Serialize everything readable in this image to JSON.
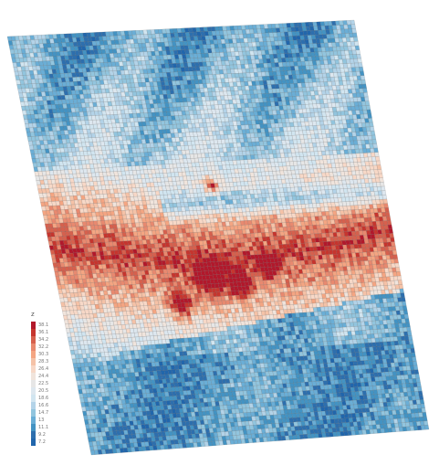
{
  "chart_data": {
    "type": "heatmap",
    "title": "",
    "xlabel": "",
    "ylabel": "",
    "grid": true,
    "rows": 96,
    "cols": 92,
    "description_of_field": "spatial heatmap; high values (red) concentrated in central band, low values (blue) at top and bottom",
    "legend": {
      "title": "z",
      "position": "bottom-left",
      "entries": [
        {
          "label": "38.1",
          "color": "#b2182b"
        },
        {
          "label": "36.1",
          "color": "#c6352e"
        },
        {
          "label": "34.2",
          "color": "#d6604d"
        },
        {
          "label": "32.2",
          "color": "#e8896f"
        },
        {
          "label": "30.3",
          "color": "#f4a582"
        },
        {
          "label": "28.3",
          "color": "#f5c2a7"
        },
        {
          "label": "26.4",
          "color": "#f7d8c7"
        },
        {
          "label": "24.4",
          "color": "#f0e4dc"
        },
        {
          "label": "22.5",
          "color": "#e6e6e6"
        },
        {
          "label": "20.5",
          "color": "#dde7ef"
        },
        {
          "label": "18.6",
          "color": "#d1e5f0"
        },
        {
          "label": "16.6",
          "color": "#b3d3e8"
        },
        {
          "label": "14.7",
          "color": "#92c5de"
        },
        {
          "label": "13",
          "color": "#6aaed6"
        },
        {
          "label": "11.1",
          "color": "#4393c3"
        },
        {
          "label": "9.2",
          "color": "#2d6fae"
        },
        {
          "label": "7.2",
          "color": "#2166ac"
        }
      ]
    },
    "zlim": [
      7.2,
      38.1
    ]
  }
}
